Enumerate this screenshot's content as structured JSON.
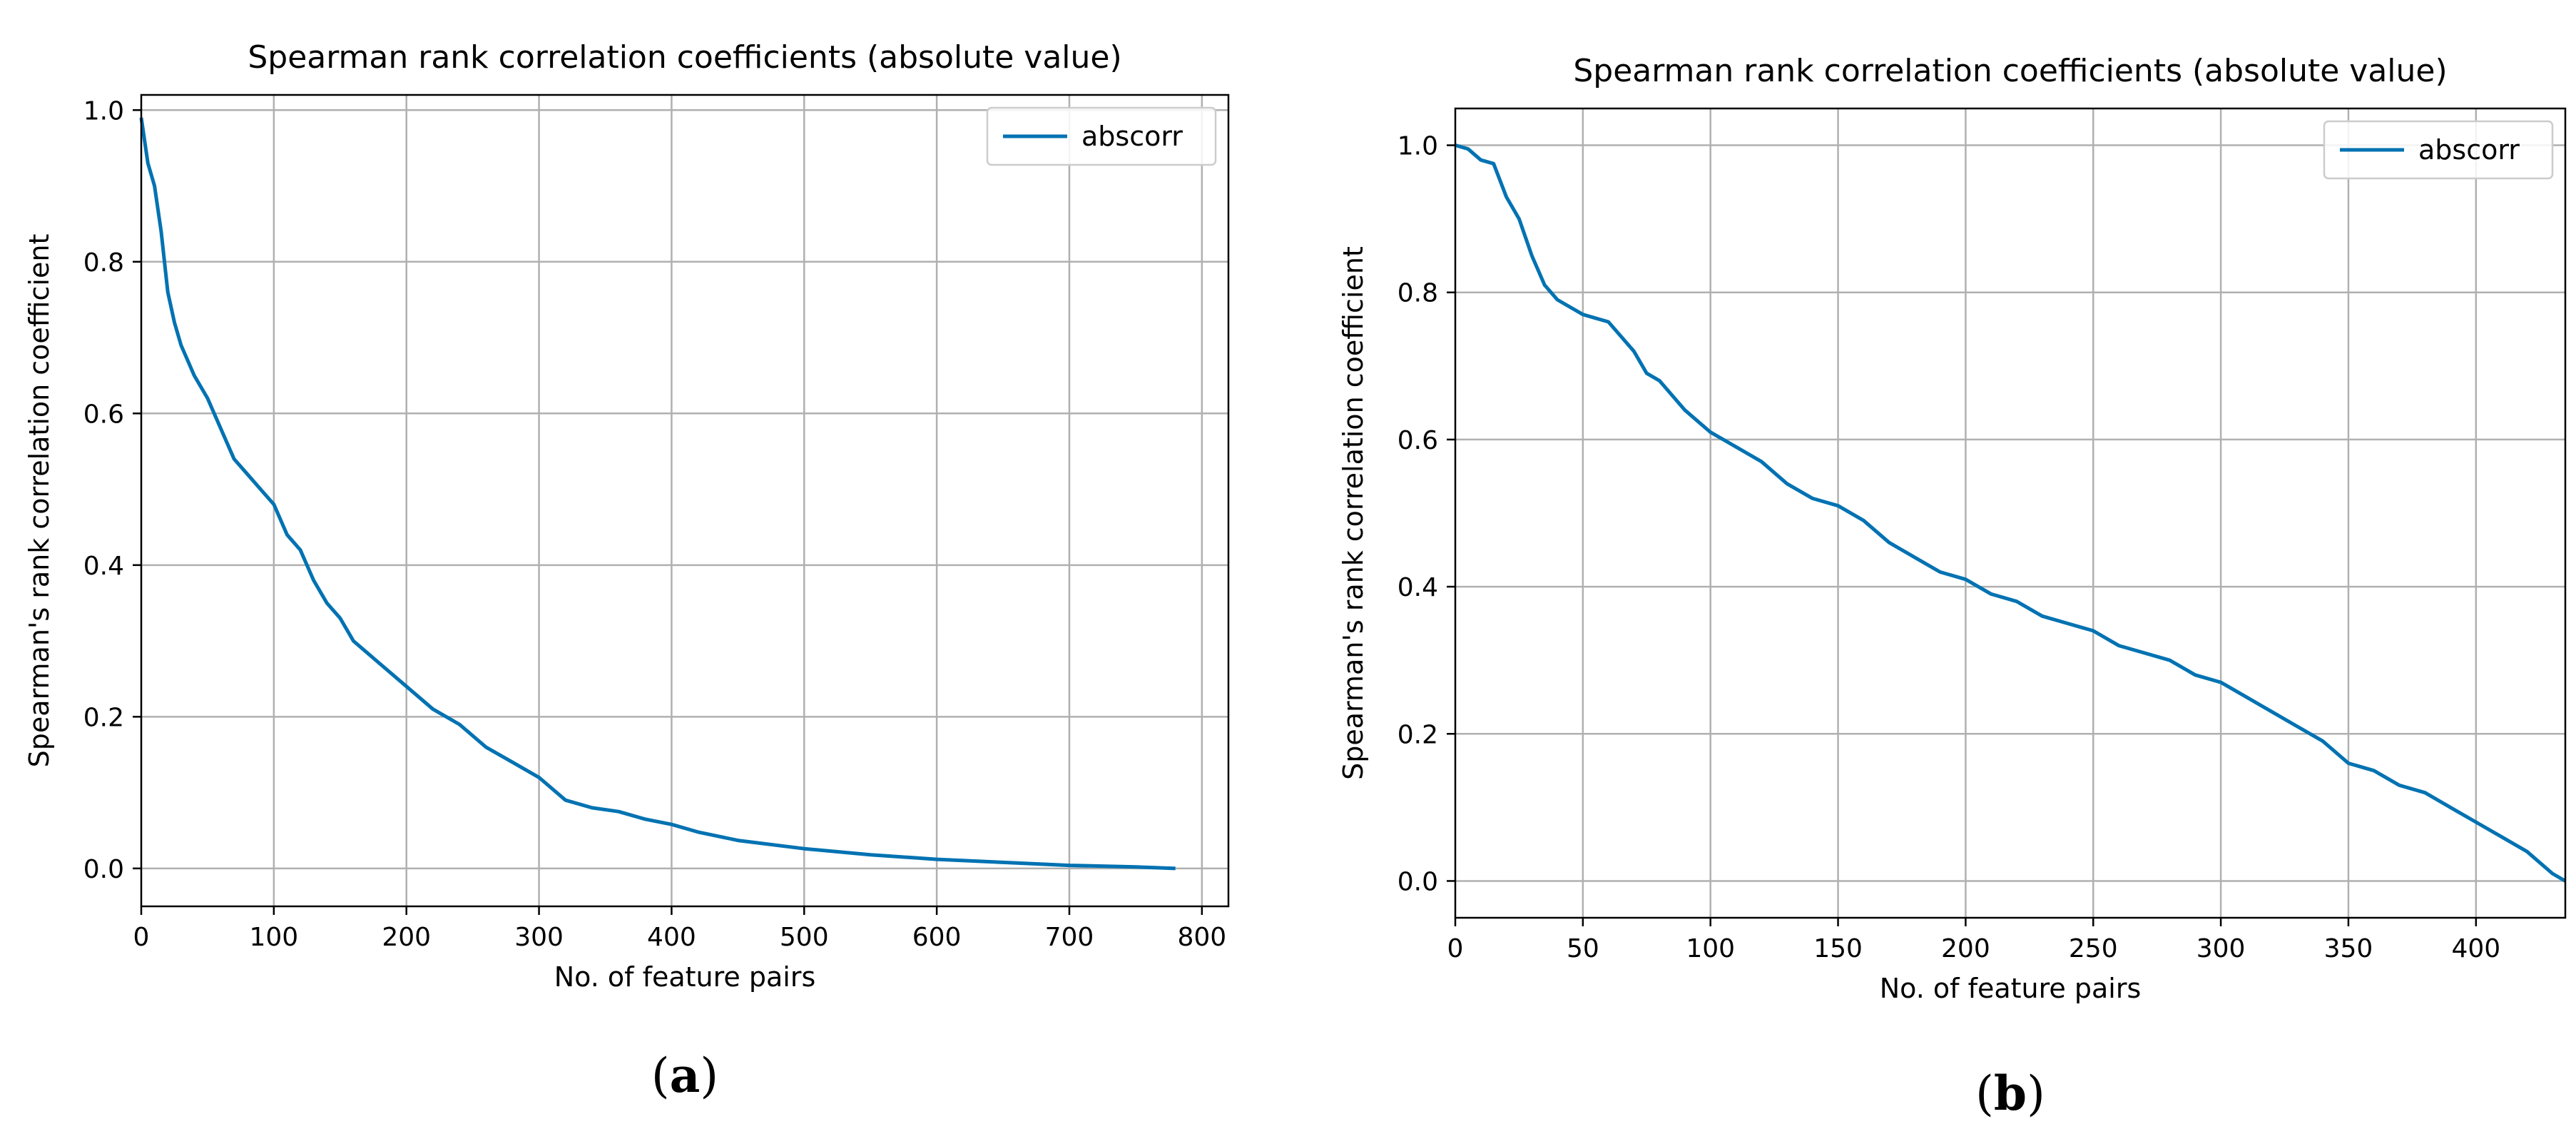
{
  "chart_data": [
    {
      "type": "line",
      "panel_label_letter": "a",
      "title": "Spearman rank correlation coefficients (absolute value)",
      "xlabel": "No. of feature pairs",
      "ylabel": "Spearman's rank correlation coefficient",
      "xlim": [
        0,
        820
      ],
      "ylim": [
        -0.05,
        1.02
      ],
      "xticks": [
        0,
        100,
        200,
        300,
        400,
        500,
        600,
        700,
        800
      ],
      "yticks": [
        0.0,
        0.2,
        0.4,
        0.6,
        0.8,
        1.0
      ],
      "xtick_labels": [
        "0",
        "100",
        "200",
        "300",
        "400",
        "500",
        "600",
        "700",
        "800"
      ],
      "ytick_labels": [
        "0.0",
        "0.2",
        "0.4",
        "0.6",
        "0.8",
        "1.0"
      ],
      "grid": true,
      "legend": {
        "position": "top-right",
        "entries": [
          "abscorr"
        ]
      },
      "series": [
        {
          "name": "abscorr",
          "color": "#0072b2",
          "x": [
            0,
            5,
            10,
            15,
            20,
            25,
            30,
            40,
            50,
            60,
            70,
            80,
            90,
            100,
            110,
            120,
            130,
            140,
            150,
            160,
            180,
            200,
            220,
            240,
            260,
            280,
            300,
            320,
            340,
            360,
            380,
            400,
            420,
            450,
            500,
            550,
            600,
            650,
            700,
            750,
            780
          ],
          "values": [
            0.99,
            0.93,
            0.9,
            0.84,
            0.76,
            0.72,
            0.69,
            0.65,
            0.62,
            0.58,
            0.54,
            0.52,
            0.5,
            0.48,
            0.44,
            0.42,
            0.38,
            0.35,
            0.33,
            0.3,
            0.27,
            0.24,
            0.21,
            0.19,
            0.16,
            0.14,
            0.12,
            0.09,
            0.08,
            0.075,
            0.065,
            0.058,
            0.048,
            0.037,
            0.026,
            0.018,
            0.012,
            0.008,
            0.004,
            0.002,
            0.0
          ]
        }
      ]
    },
    {
      "type": "line",
      "panel_label_letter": "b",
      "title": "Spearman rank correlation coefficients (absolute value)",
      "xlabel": "No. of feature pairs",
      "ylabel": "Spearman's rank correlation coefficient",
      "xlim": [
        0,
        435
      ],
      "ylim": [
        -0.05,
        1.05
      ],
      "xticks": [
        0,
        50,
        100,
        150,
        200,
        250,
        300,
        350,
        400
      ],
      "yticks": [
        0.0,
        0.2,
        0.4,
        0.6,
        0.8,
        1.0
      ],
      "xtick_labels": [
        "0",
        "50",
        "100",
        "150",
        "200",
        "250",
        "300",
        "350",
        "400"
      ],
      "ytick_labels": [
        "0.0",
        "0.2",
        "0.4",
        "0.6",
        "0.8",
        "1.0"
      ],
      "grid": true,
      "legend": {
        "position": "top-right",
        "entries": [
          "abscorr"
        ]
      },
      "series": [
        {
          "name": "abscorr",
          "color": "#0072b2",
          "x": [
            0,
            5,
            10,
            15,
            20,
            25,
            30,
            35,
            40,
            50,
            60,
            65,
            70,
            75,
            80,
            90,
            100,
            110,
            120,
            130,
            140,
            150,
            160,
            170,
            180,
            190,
            200,
            210,
            220,
            230,
            240,
            250,
            260,
            270,
            280,
            290,
            300,
            310,
            320,
            330,
            340,
            350,
            360,
            370,
            380,
            390,
            400,
            410,
            420,
            430,
            435
          ],
          "values": [
            1.0,
            0.995,
            0.98,
            0.975,
            0.93,
            0.9,
            0.85,
            0.81,
            0.79,
            0.77,
            0.76,
            0.74,
            0.72,
            0.69,
            0.68,
            0.64,
            0.61,
            0.59,
            0.57,
            0.54,
            0.52,
            0.51,
            0.49,
            0.46,
            0.44,
            0.42,
            0.41,
            0.39,
            0.38,
            0.36,
            0.35,
            0.34,
            0.32,
            0.31,
            0.3,
            0.28,
            0.27,
            0.25,
            0.23,
            0.21,
            0.19,
            0.16,
            0.15,
            0.13,
            0.12,
            0.1,
            0.08,
            0.06,
            0.04,
            0.01,
            0.0
          ]
        }
      ]
    }
  ]
}
